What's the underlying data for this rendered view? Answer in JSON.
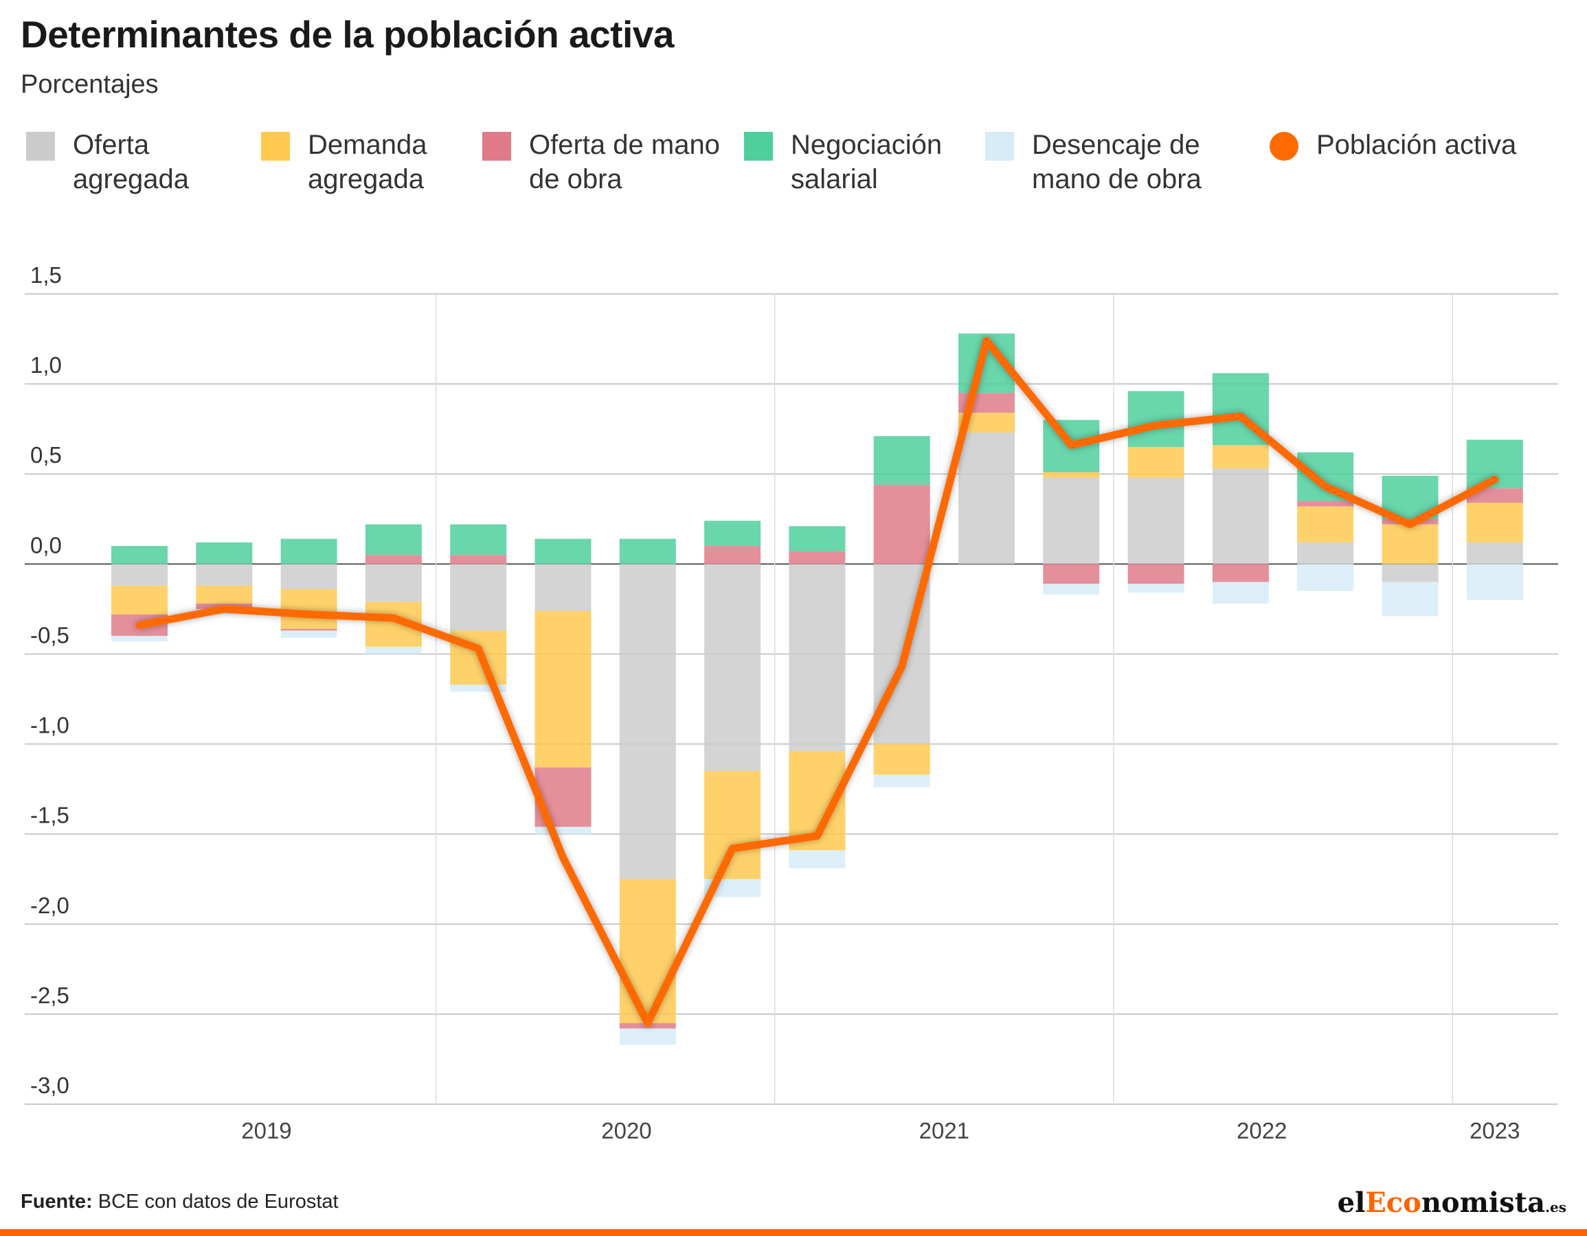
{
  "title": "Determinantes de la población activa",
  "subtitle": "Porcentajes",
  "legend": [
    {
      "label": "Oferta agregada",
      "color": "#cccccc",
      "shape": "square"
    },
    {
      "label": "Demanda agregada",
      "color": "#ffc950",
      "shape": "square"
    },
    {
      "label": "Oferta de mano de obra",
      "color": "#e07b89",
      "shape": "square"
    },
    {
      "label": "Negociación salarial",
      "color": "#4fcf9c",
      "shape": "square"
    },
    {
      "label": "Desencaje de mano de obra",
      "color": "#d6ecf8",
      "shape": "square"
    },
    {
      "label": "Población activa",
      "color": "#ff6a00",
      "shape": "circle"
    }
  ],
  "chart_data": {
    "type": "bar",
    "stacked": true,
    "ylim": [
      -3.0,
      1.5
    ],
    "yticks": [
      1.5,
      1.0,
      0.5,
      0.0,
      -0.5,
      -1.0,
      -1.5,
      -2.0,
      -2.5,
      -3.0
    ],
    "ytick_labels": [
      "1,5",
      "1,0",
      "0,5",
      "0,0",
      "-0,5",
      "-1,0",
      "-1,5",
      "-2,0",
      "-2,5",
      "-3,0"
    ],
    "year_labels": [
      "2019",
      "2020",
      "2021",
      "2022",
      "2023"
    ],
    "year_label_positions": [
      1.5,
      5.75,
      9.5,
      13.25,
      16.0
    ],
    "year_separators": [
      3.5,
      7.5,
      11.5,
      15.5
    ],
    "categories": [
      "2019-Q1",
      "2019-Q2",
      "2019-Q3",
      "2019-Q4",
      "2020-Q1",
      "2020-Q2",
      "2020-Q3",
      "2020-Q4",
      "2021-Q1",
      "2021-Q2",
      "2021-Q3",
      "2021-Q4",
      "2022-Q1",
      "2022-Q2",
      "2022-Q3",
      "2022-Q4",
      "2023-Q1"
    ],
    "series": [
      {
        "name": "Oferta agregada",
        "color": "#cccccc",
        "values": [
          -0.12,
          -0.12,
          -0.14,
          -0.21,
          -0.37,
          -0.26,
          -1.75,
          -1.15,
          -1.04,
          -1.0,
          0.73,
          0.48,
          0.48,
          0.53,
          0.12,
          -0.1,
          0.12
        ]
      },
      {
        "name": "Demanda agregada",
        "color": "#ffc950",
        "values": [
          -0.16,
          -0.1,
          -0.22,
          -0.25,
          -0.3,
          -0.87,
          -0.8,
          -0.6,
          -0.55,
          -0.17,
          0.11,
          0.03,
          0.17,
          0.13,
          0.2,
          0.22,
          0.22
        ]
      },
      {
        "name": "Oferta de mano de obra",
        "color": "#e07b89",
        "values": [
          -0.12,
          -0.03,
          -0.01,
          0.05,
          0.05,
          -0.33,
          -0.03,
          0.1,
          0.07,
          0.44,
          0.11,
          -0.11,
          -0.11,
          -0.1,
          0.03,
          0.03,
          0.08
        ]
      },
      {
        "name": "Negociación salarial",
        "color": "#4fcf9c",
        "values": [
          0.1,
          0.12,
          0.14,
          0.17,
          0.17,
          0.14,
          0.14,
          0.14,
          0.14,
          0.27,
          0.33,
          0.29,
          0.31,
          0.4,
          0.27,
          0.24,
          0.27
        ]
      },
      {
        "name": "Desencaje de mano de obra",
        "color": "#d6ecf8",
        "values": [
          -0.03,
          -0.03,
          -0.04,
          -0.04,
          -0.04,
          -0.04,
          -0.09,
          -0.1,
          -0.1,
          -0.07,
          0.0,
          -0.06,
          -0.05,
          -0.12,
          -0.15,
          -0.19,
          -0.2
        ]
      }
    ],
    "line": {
      "name": "Población activa",
      "color": "#ff6a00",
      "values": [
        -0.34,
        -0.25,
        -0.28,
        -0.3,
        -0.47,
        -1.63,
        -2.55,
        -1.58,
        -1.51,
        -0.57,
        1.24,
        0.66,
        0.77,
        0.82,
        0.43,
        0.22,
        0.47
      ]
    }
  },
  "footer": {
    "source_label": "Fuente:",
    "source_text": "BCE con datos de Eurostat"
  },
  "brand": {
    "prefix": "el",
    "accent": "Eco",
    "rest": "nomista",
    "suffix": ".es"
  }
}
